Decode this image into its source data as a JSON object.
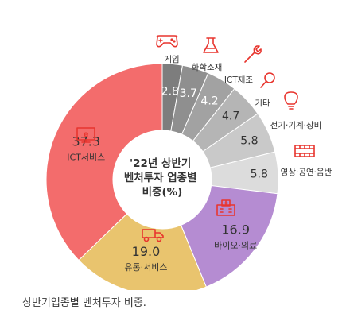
{
  "chart_data": {
    "type": "pie",
    "variant": "donut",
    "title": "'22년 상반기 벤처투자 업종별 비중(%)",
    "title_lines": [
      "'22년 상반기",
      "벤처투자 업종별",
      "비중(%)"
    ],
    "slices": [
      {
        "label": "게임",
        "value": 2.8,
        "color": "#7d7d7d",
        "value_color": "#ffffff",
        "icon": "gamepad-icon"
      },
      {
        "label": "화학소재",
        "value": 3.7,
        "color": "#8f8f8f",
        "value_color": "#ffffff",
        "icon": "flask-icon"
      },
      {
        "label": "ICT제조",
        "value": 4.2,
        "color": "#a2a2a2",
        "value_color": "#ffffff",
        "icon": "wrench-icon"
      },
      {
        "label": "기타",
        "value": 4.7,
        "color": "#b5b5b5",
        "value_color": "#333333",
        "icon": "magnifier-icon"
      },
      {
        "label": "전기·기계·장비",
        "value": 5.8,
        "color": "#c9c9c9",
        "value_color": "#333333",
        "icon": "lightbulb-icon"
      },
      {
        "label": "영상·공연·음반",
        "value": 5.8,
        "color": "#dcdcdc",
        "value_color": "#333333",
        "icon": "film-icon"
      },
      {
        "label": "바이오·의료",
        "value": 16.9,
        "color": "#b58cd2",
        "value_color": "#333333",
        "icon": "hospital-icon"
      },
      {
        "label": "유통·서비스",
        "value": 19.0,
        "color": "#e9c46e",
        "value_color": "#333333",
        "icon": "truck-icon"
      },
      {
        "label": "ICT서비스",
        "value": 37.3,
        "color": "#f36c6c",
        "value_color": "#333333",
        "icon": "computer-icon"
      }
    ]
  },
  "caption": "상반기업종별 벤처투자 비중.",
  "colors": {
    "icon_accent": "#e8352e",
    "center_fill": "#ffffff",
    "text": "#333333"
  }
}
